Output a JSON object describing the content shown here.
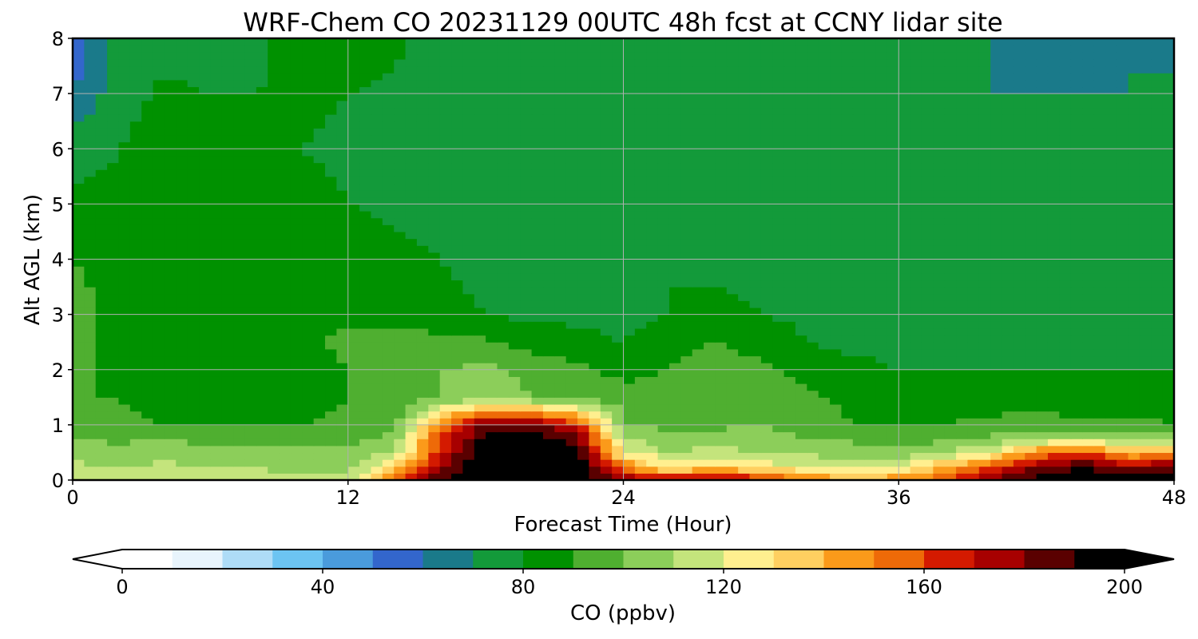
{
  "chart_data": {
    "type": "heatmap",
    "title": "WRF-Chem CO  20231129 00UTC 48h fcst at CCNY lidar site",
    "xlabel": "Forecast Time (Hour)",
    "ylabel": "Alt AGL (km)",
    "xlim": [
      0,
      48
    ],
    "ylim": [
      0,
      8
    ],
    "x_ticks": [
      0,
      12,
      24,
      36,
      48
    ],
    "y_ticks": [
      0,
      1,
      2,
      3,
      4,
      5,
      6,
      7,
      8
    ],
    "grid": true,
    "colorbar": {
      "label": "CO  (ppbv)",
      "min": 0,
      "max": 200,
      "ticks": [
        0,
        40,
        80,
        120,
        160,
        200
      ],
      "extend": "both",
      "colors": [
        "#ffffff",
        "#e8f4fc",
        "#aedcf7",
        "#6cc4f2",
        "#4a9bdc",
        "#3366cc",
        "#1a7a8a",
        "#139a3a",
        "#009100",
        "#4faf30",
        "#8cce5a",
        "#c4e47c",
        "#ffef8f",
        "#ffcf60",
        "#fb9a1a",
        "#ee6a08",
        "#d41a00",
        "#a70000",
        "#5a0000",
        "#000000"
      ]
    },
    "x": [
      0,
      2,
      4,
      6,
      8,
      10,
      12,
      14,
      16,
      18,
      20,
      22,
      24,
      26,
      28,
      30,
      32,
      34,
      36,
      38,
      40,
      42,
      44,
      46,
      48
    ],
    "y": [
      0,
      0.25,
      0.5,
      0.75,
      1,
      1.5,
      2,
      2.5,
      3,
      4,
      5,
      6,
      7,
      8
    ],
    "values": [
      [
        118,
        116,
        116,
        114,
        114,
        112,
        112,
        150,
        190,
        205,
        205,
        200,
        180,
        172,
        176,
        170,
        150,
        145,
        148,
        160,
        180,
        195,
        200,
        195,
        198
      ],
      [
        112,
        110,
        112,
        110,
        110,
        106,
        106,
        130,
        175,
        205,
        205,
        200,
        150,
        125,
        135,
        125,
        120,
        118,
        120,
        140,
        160,
        180,
        190,
        175,
        180
      ],
      [
        106,
        104,
        106,
        104,
        104,
        102,
        102,
        110,
        165,
        200,
        200,
        195,
        125,
        110,
        115,
        110,
        108,
        105,
        105,
        110,
        120,
        150,
        165,
        140,
        150
      ],
      [
        100,
        98,
        100,
        96,
        98,
        98,
        98,
        104,
        160,
        195,
        195,
        185,
        110,
        102,
        104,
        104,
        100,
        98,
        96,
        98,
        102,
        108,
        110,
        105,
        108
      ],
      [
        94,
        92,
        90,
        88,
        88,
        90,
        92,
        96,
        150,
        185,
        185,
        165,
        100,
        98,
        98,
        100,
        96,
        90,
        90,
        90,
        92,
        94,
        92,
        92,
        90
      ],
      [
        90,
        90,
        86,
        84,
        84,
        86,
        90,
        94,
        100,
        104,
        100,
        94,
        96,
        94,
        96,
        98,
        92,
        88,
        86,
        86,
        86,
        86,
        85,
        85,
        85
      ],
      [
        92,
        88,
        84,
        82,
        84,
        86,
        90,
        96,
        100,
        102,
        98,
        92,
        86,
        90,
        96,
        92,
        86,
        82,
        80,
        80,
        80,
        80,
        80,
        80,
        80
      ],
      [
        94,
        86,
        82,
        84,
        86,
        88,
        92,
        94,
        94,
        92,
        86,
        82,
        80,
        84,
        90,
        86,
        80,
        78,
        78,
        78,
        78,
        78,
        78,
        78,
        78
      ],
      [
        95,
        86,
        84,
        86,
        86,
        88,
        88,
        86,
        82,
        80,
        78,
        78,
        78,
        80,
        82,
        80,
        78,
        78,
        78,
        78,
        78,
        78,
        78,
        78,
        78
      ],
      [
        90,
        86,
        84,
        86,
        88,
        90,
        86,
        82,
        80,
        78,
        78,
        78,
        78,
        80,
        78,
        76,
        74,
        72,
        74,
        76,
        76,
        78,
        78,
        78,
        78
      ],
      [
        82,
        82,
        84,
        86,
        86,
        84,
        80,
        78,
        78,
        78,
        78,
        78,
        78,
        78,
        76,
        74,
        72,
        70,
        72,
        72,
        74,
        72,
        70,
        72,
        74
      ],
      [
        76,
        80,
        84,
        86,
        84,
        80,
        78,
        78,
        78,
        78,
        76,
        76,
        76,
        74,
        74,
        72,
        72,
        74,
        72,
        72,
        70,
        70,
        70,
        70,
        72
      ],
      [
        60,
        76,
        82,
        80,
        80,
        82,
        80,
        78,
        78,
        76,
        76,
        74,
        74,
        72,
        72,
        72,
        70,
        70,
        70,
        70,
        70,
        70,
        70,
        70,
        72
      ],
      [
        52,
        74,
        76,
        76,
        78,
        84,
        86,
        82,
        76,
        74,
        74,
        72,
        72,
        72,
        72,
        70,
        70,
        70,
        70,
        70,
        70,
        68,
        68,
        70,
        66
      ]
    ]
  }
}
